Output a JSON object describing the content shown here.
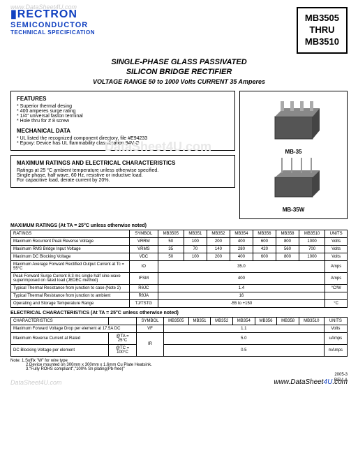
{
  "watermark": {
    "tl": "www.DataSheet4U.com",
    "center": "DataSheet4U.com",
    "br_pre": "www.",
    "br_main": "DataSheet",
    "br_4u": "4U",
    "br_suf": ".com",
    "bl": "DataSheet4U.com"
  },
  "brand": {
    "logo": "▮RECTRON",
    "sub": "SEMICONDUCTOR",
    "spec": "TECHNICAL SPECIFICATION"
  },
  "partbox": {
    "l1": "MB3505",
    "l2": "THRU",
    "l3": "MB3510"
  },
  "titles": {
    "t1": "SINGLE-PHASE GLASS PASSIVATED",
    "t2": "SILICON BRIDGE RECTIFIER",
    "t3": "VOLTAGE RANGE  50 to 1000 Volts   CURRENT 35 Amperes"
  },
  "features": {
    "title": "FEATURES",
    "items": [
      "Superior thermal desing",
      "400 amperes surge rating",
      "1/4\" universal faston terminal",
      "Hole thru for # 8 screw"
    ]
  },
  "mech": {
    "title": "MECHANICAL DATA",
    "items": [
      "UL listed the recognized component directory, file #E94233",
      "Epoxy: Device has UL flammability classification 94V-O"
    ]
  },
  "maxbox": {
    "title": "MAXIMUM RATINGS AND ELECTRICAL CHARACTERISTICS",
    "l1": "Ratings at 25 °C ambient temperature unless otherwise specified.",
    "l2": "Single phase, half wave, 60 Hz, resistive or inductive load.",
    "l3": "For capacitive load, derate current by 20%."
  },
  "img_labels": {
    "a": "MB-35",
    "b": "MB-35W"
  },
  "maxratings": {
    "title": "MAXIMUM RATINGS (At TA = 25°C unless otherwise noted)",
    "headers": [
      "RATINGS",
      "SYMBOL",
      "MB3505",
      "MB351",
      "MB352",
      "MB354",
      "MB356",
      "MB358",
      "MB3510",
      "UNITS"
    ],
    "rows": [
      [
        "Maximum Recurrent Peak Reverse Voltage",
        "VRRM",
        "50",
        "100",
        "200",
        "400",
        "600",
        "800",
        "1000",
        "Volts"
      ],
      [
        "Maximum RMS Bridge Input Voltage",
        "VRMS",
        "35",
        "70",
        "140",
        "280",
        "420",
        "560",
        "700",
        "Volts"
      ],
      [
        "Maximum DC Blocking Voltage",
        "VDC",
        "50",
        "100",
        "200",
        "400",
        "600",
        "800",
        "1000",
        "Volts"
      ],
      [
        "Maximum Average Forward Rectified Output Current at Tc = 55°C",
        "IO",
        "",
        "",
        "",
        "35.0",
        "",
        "",
        "",
        "Amps"
      ],
      [
        "Peak Forward Surge Current 8.3 ms single half sine-wave superimposed on rated load (JEDEC method)",
        "IFSM",
        "",
        "",
        "",
        "400",
        "",
        "",
        "",
        "Amps"
      ],
      [
        "Typical Thermal Resistance from junction to case (Note 2)",
        "RθJC",
        "",
        "",
        "",
        "1.4",
        "",
        "",
        "",
        "°C/W"
      ],
      [
        "Typical Thermal Resistance from junction to ambient",
        "RθJA",
        "",
        "",
        "",
        "16",
        "",
        "",
        "",
        ""
      ],
      [
        "Operating and Storage Temperature Range",
        "TJ/TSTG",
        "",
        "",
        "",
        "-55 to +150",
        "",
        "",
        "",
        "°C"
      ]
    ]
  },
  "elec": {
    "title": "ELECTRICAL CHARACTERISTICS (At TA = 25°C unless otherwise noted)",
    "headers": [
      "CHARACTERISTICS",
      "",
      "SYMBOL",
      "MB3505",
      "MB351",
      "MB352",
      "MB354",
      "MB356",
      "MB358",
      "MB3510",
      "UNITS"
    ],
    "rows": [
      [
        "Maximum Forward Voltage Drop per element at 17.5A DC",
        "",
        "VF",
        "",
        "",
        "",
        "1.1",
        "",
        "",
        "",
        "Volts"
      ],
      [
        "Maximum Reverse Current at Rated",
        "@TA = 25°C",
        "IR",
        "",
        "",
        "",
        "5.0",
        "",
        "",
        "",
        "uAmps"
      ],
      [
        "DC Blocking Voltage per element",
        "@TC = 100°C",
        "",
        "",
        "",
        "",
        "0.5",
        "",
        "",
        "",
        "mAmps"
      ]
    ]
  },
  "notes": {
    "l1": "Note: 1.Suffix \"W\" for wire type",
    "l2": "2.Device mounted on 300mm x 300mm x 1.6mm Cu Plate Heatsink.",
    "l3": "3.\"Fully ROHS compliant\",\"100% Sn plating(Pb-free)\""
  },
  "footer": {
    "date": "2005-3",
    "rev": "REV: A"
  }
}
